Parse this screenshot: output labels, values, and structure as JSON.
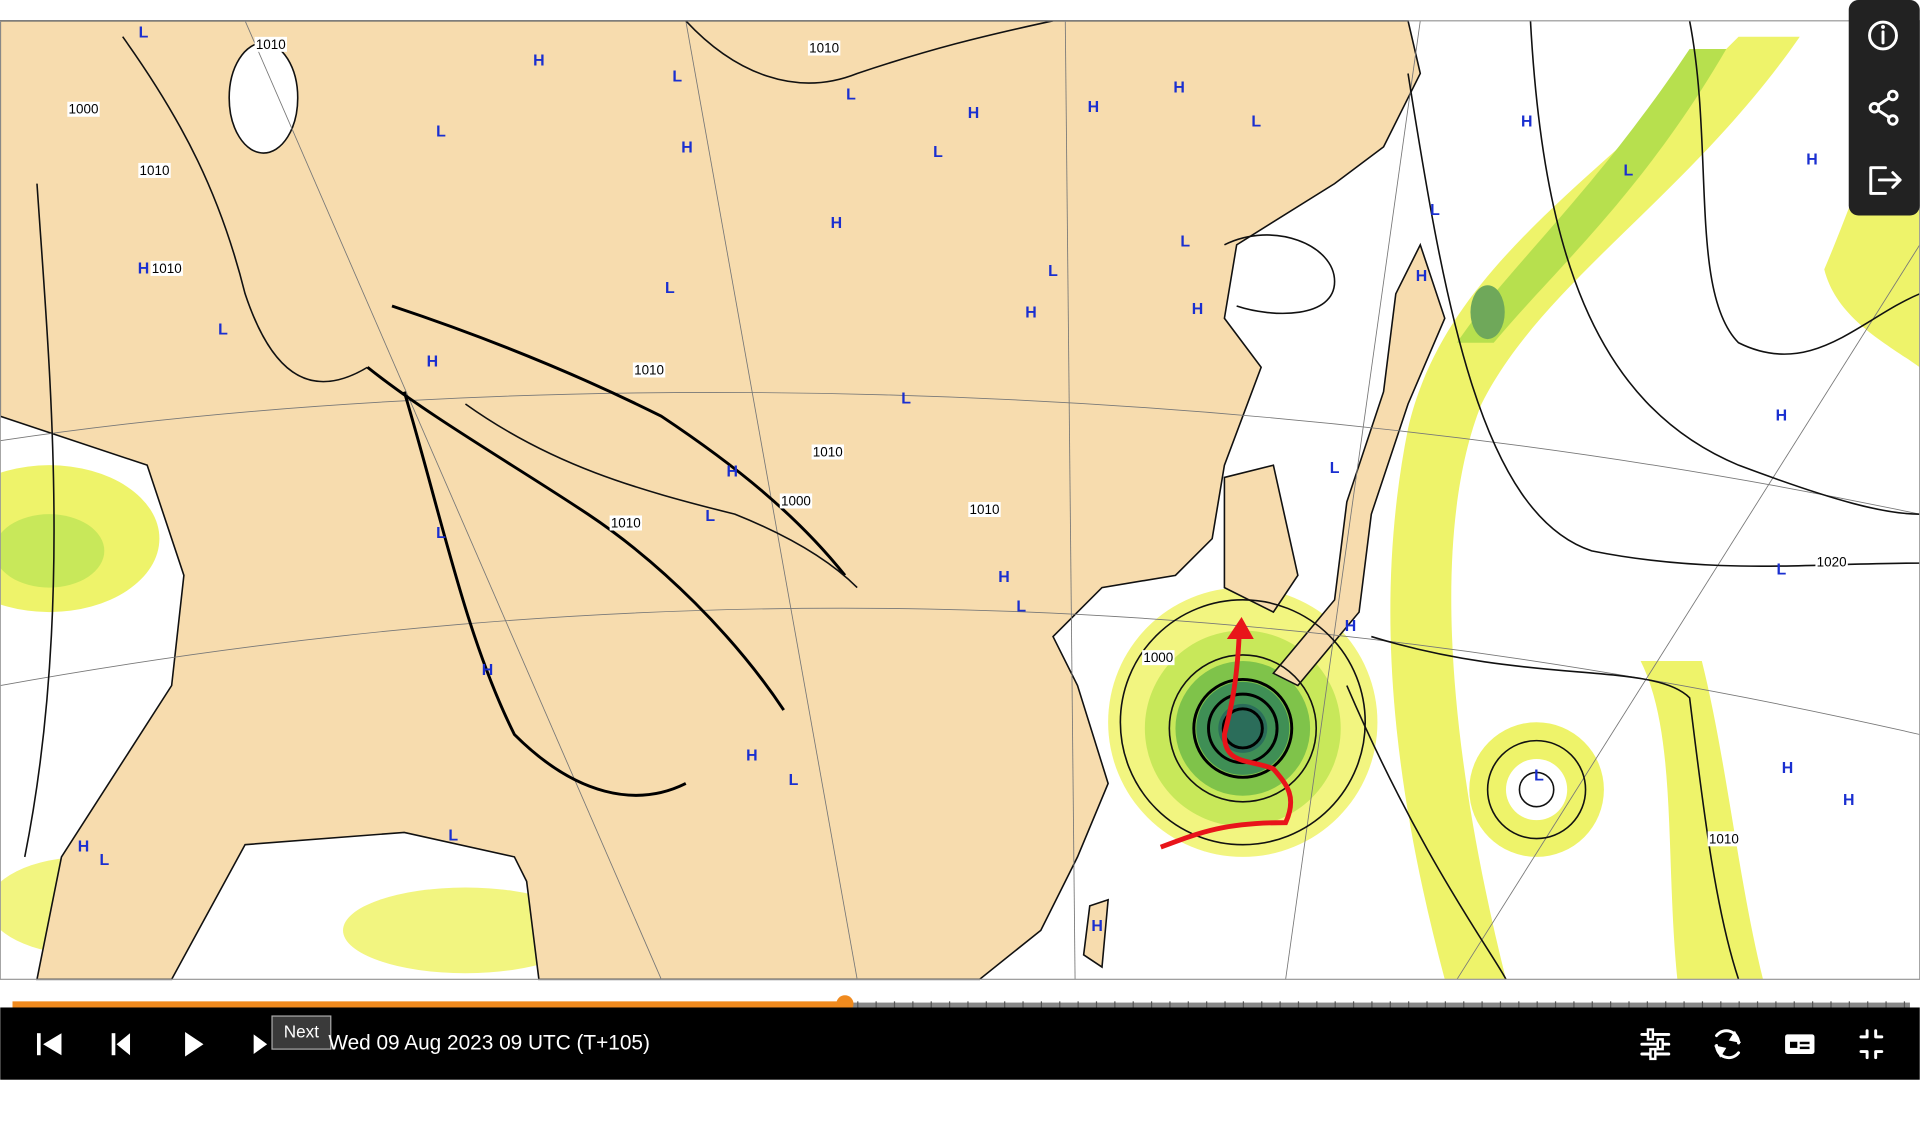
{
  "map": {
    "pressure_labels": [
      "L",
      "1010",
      "H",
      "L",
      "1010",
      "L",
      "H",
      "H",
      "H",
      "L",
      "H",
      "H",
      "L",
      "L",
      "H",
      "L",
      "1000",
      "1010",
      "H",
      "L",
      "L",
      "H",
      "1010",
      "L",
      "H",
      "L",
      "H",
      "H",
      "L",
      "H",
      "1010",
      "L",
      "H",
      "1010",
      "H",
      "L",
      "1000",
      "1010",
      "1010",
      "L",
      "L",
      "H",
      "L",
      "1020",
      "L",
      "H",
      "1000",
      "H",
      "H",
      "L",
      "L",
      "H",
      "H",
      "L",
      "H",
      "L",
      "1010",
      "H"
    ]
  },
  "player": {
    "tooltip": "Next",
    "timestamp": "Wed 09 Aug 2023 09 UTC (T+105)"
  }
}
